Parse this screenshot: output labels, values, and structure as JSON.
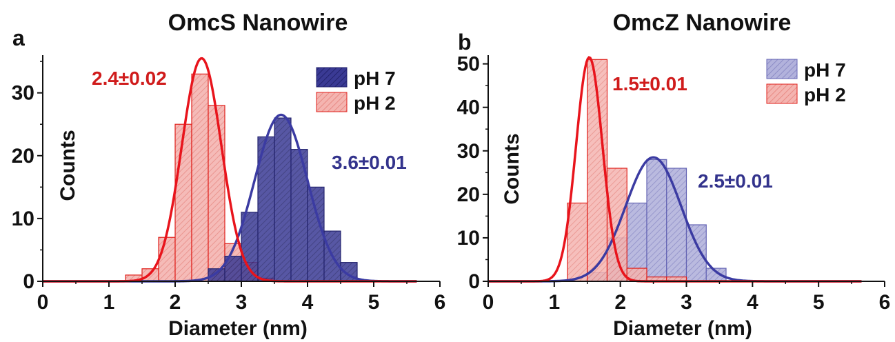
{
  "chart_data": [
    {
      "type": "bar",
      "panel": "a",
      "title": "OmcS Nanowire",
      "xlabel": "Diameter (nm)",
      "ylabel": "Counts",
      "xlim": [
        0,
        6
      ],
      "ylim": [
        0,
        36
      ],
      "xticks": [
        "0",
        "1",
        "2",
        "3",
        "4",
        "5",
        "6"
      ],
      "yticks": [
        "0",
        "10",
        "20",
        "30"
      ],
      "bin_width": 0.25,
      "series": [
        {
          "name": "pH 7",
          "color": "#2e2e8a",
          "bins": [
            {
              "x": 2.5,
              "y": 2
            },
            {
              "x": 2.75,
              "y": 4
            },
            {
              "x": 3.0,
              "y": 11
            },
            {
              "x": 3.25,
              "y": 23
            },
            {
              "x": 3.5,
              "y": 26
            },
            {
              "x": 3.75,
              "y": 21
            },
            {
              "x": 4.0,
              "y": 15
            },
            {
              "x": 4.25,
              "y": 8
            },
            {
              "x": 4.5,
              "y": 3
            }
          ],
          "fit": {
            "mean": 3.6,
            "sd": 0.4,
            "peak": 26.5
          },
          "annotation": "3.6±0.01"
        },
        {
          "name": "pH 2",
          "color": "#e0201b",
          "bins": [
            {
              "x": 1.25,
              "y": 1
            },
            {
              "x": 1.5,
              "y": 2
            },
            {
              "x": 1.75,
              "y": 7
            },
            {
              "x": 2.0,
              "y": 25
            },
            {
              "x": 2.25,
              "y": 33
            },
            {
              "x": 2.5,
              "y": 28
            },
            {
              "x": 2.75,
              "y": 6
            },
            {
              "x": 3.0,
              "y": 3
            },
            {
              "x": 3.25,
              "y": 0.5
            }
          ],
          "fit": {
            "mean": 2.4,
            "sd": 0.3,
            "peak": 35.5
          },
          "annotation": "2.4±0.02"
        }
      ],
      "legend": [
        "pH 7",
        "pH 2"
      ],
      "legend_position": "top-right"
    },
    {
      "type": "bar",
      "panel": "b",
      "title": "OmcZ Nanowire",
      "xlabel": "Diameter (nm)",
      "ylabel": "Counts",
      "xlim": [
        0,
        6
      ],
      "ylim": [
        0,
        52
      ],
      "xticks": [
        "0",
        "1",
        "2",
        "3",
        "4",
        "5",
        "6"
      ],
      "yticks": [
        "0",
        "10",
        "20",
        "30",
        "40",
        "50"
      ],
      "bin_width": 0.3,
      "series": [
        {
          "name": "pH 7",
          "color": "#6464b4",
          "bins": [
            {
              "x": 1.5,
              "y": 2
            },
            {
              "x": 1.8,
              "y": 10
            },
            {
              "x": 2.1,
              "y": 18
            },
            {
              "x": 2.4,
              "y": 28
            },
            {
              "x": 2.7,
              "y": 26
            },
            {
              "x": 3.0,
              "y": 13
            },
            {
              "x": 3.3,
              "y": 3
            }
          ],
          "fit": {
            "mean": 2.5,
            "sd": 0.42,
            "peak": 28.5
          },
          "annotation": "2.5±0.01"
        },
        {
          "name": "pH 2",
          "color": "#e0201b",
          "bins": [
            {
              "x": 1.2,
              "y": 18
            },
            {
              "x": 1.5,
              "y": 51
            },
            {
              "x": 1.8,
              "y": 26
            },
            {
              "x": 2.1,
              "y": 3
            },
            {
              "x": 2.4,
              "y": 1
            },
            {
              "x": 2.7,
              "y": 1
            }
          ],
          "fit": {
            "mean": 1.53,
            "sd": 0.2,
            "peak": 51.5
          },
          "annotation": "1.5±0.01"
        }
      ],
      "legend": [
        "pH 7",
        "pH 2"
      ],
      "legend_position": "top-right"
    }
  ]
}
